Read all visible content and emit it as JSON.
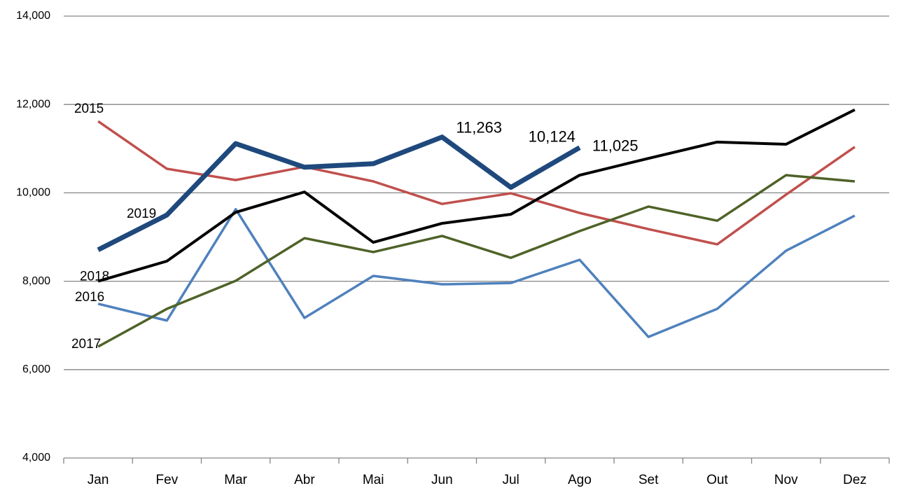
{
  "chart_data": {
    "type": "line",
    "categories": [
      "Jan",
      "Fev",
      "Mar",
      "Abr",
      "Mai",
      "Jun",
      "Jul",
      "Ago",
      "Set",
      "Out",
      "Nov",
      "Dez"
    ],
    "series": [
      {
        "name": "2015",
        "color": "#c0504d",
        "width": 3.5,
        "values": [
          11620,
          10545,
          10290,
          10590,
          10260,
          9750,
          9990,
          9545,
          9180,
          8835,
          9960,
          11040
        ]
      },
      {
        "name": "2016",
        "color": "#4f81bd",
        "width": 3.5,
        "values": [
          7490,
          7110,
          9630,
          7170,
          8120,
          7930,
          7960,
          8485,
          6740,
          7375,
          8690,
          9485
        ]
      },
      {
        "name": "2017",
        "color": "#4f6228",
        "width": 3.5,
        "values": [
          6520,
          7375,
          8010,
          8975,
          8660,
          9025,
          8530,
          9135,
          9690,
          9370,
          10400,
          10260
        ]
      },
      {
        "name": "2018",
        "color": "#000000",
        "width": 4,
        "values": [
          8000,
          8455,
          9560,
          10020,
          8880,
          9310,
          9515,
          10400,
          10780,
          11150,
          11100,
          11880
        ]
      },
      {
        "name": "2019",
        "color": "#1f497d",
        "width": 7,
        "values": [
          8710,
          9500,
          11115,
          10580,
          10660,
          11263,
          10124,
          11025,
          null,
          null,
          null,
          null
        ],
        "value_labels": [
          null,
          null,
          null,
          null,
          null,
          "11,263",
          "10,124",
          "11,025",
          null,
          null,
          null,
          null
        ]
      }
    ],
    "ylim": [
      4000,
      14000
    ],
    "yticks": [
      {
        "value": 4000,
        "label": "4,000"
      },
      {
        "value": 6000,
        "label": "6,000"
      },
      {
        "value": 8000,
        "label": "8,000"
      },
      {
        "value": 10000,
        "label": "10,000"
      },
      {
        "value": 12000,
        "label": "12,000"
      },
      {
        "value": 14000,
        "label": "14,000"
      }
    ],
    "grid": true
  }
}
